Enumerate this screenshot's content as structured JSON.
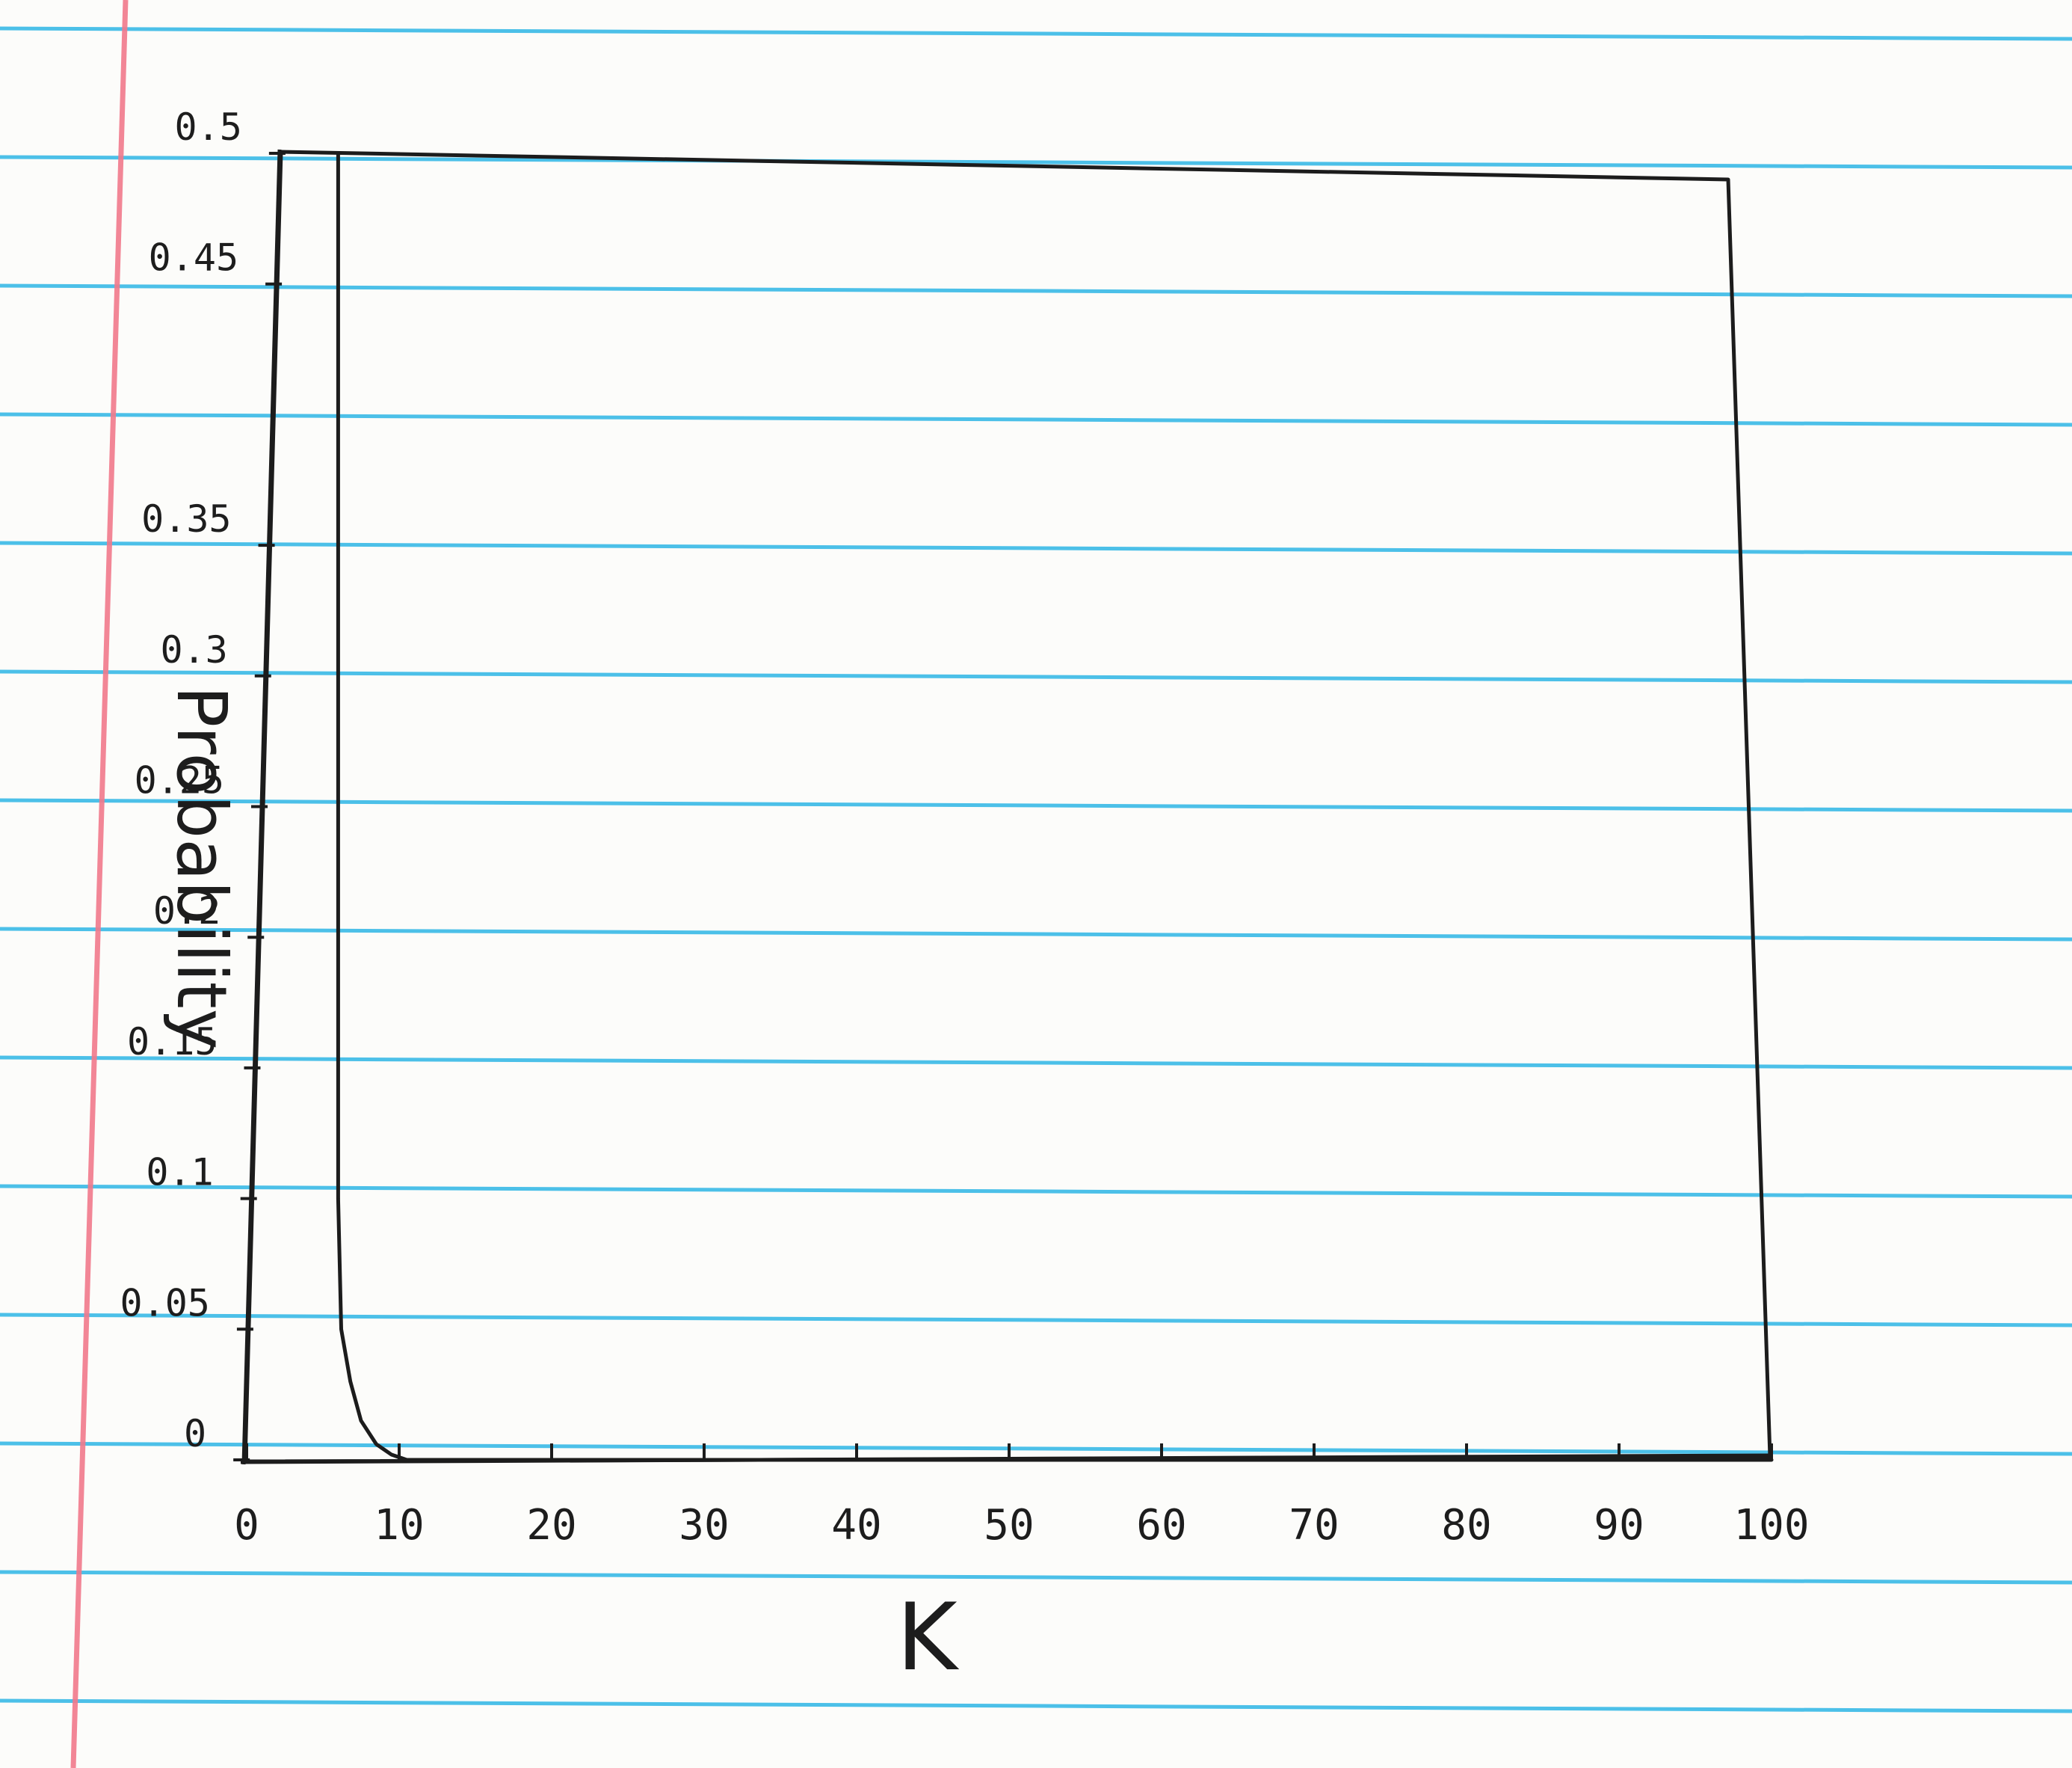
{
  "chart_data": {
    "type": "line",
    "title": "",
    "xlabel": "K",
    "ylabel": "Probability",
    "xlim": [
      0,
      100
    ],
    "ylim": [
      0,
      0.5
    ],
    "x_ticks": [
      "0",
      "10",
      "20",
      "30",
      "40",
      "50",
      "60",
      "70",
      "80",
      "90",
      "100"
    ],
    "y_ticks": [
      "0",
      "0.05",
      "0.1",
      "0.15",
      "0.2",
      "0.25",
      "0.3",
      "0.35",
      "0.45",
      "0.5"
    ],
    "series": [
      {
        "x": [
          6,
          6,
          6,
          6,
          6,
          6.2,
          6.8,
          7.5,
          8.5,
          9.5,
          10.5,
          100
        ],
        "y": [
          0.5,
          0.4,
          0.3,
          0.2,
          0.1,
          0.05,
          0.03,
          0.015,
          0.006,
          0.002,
          0,
          0
        ]
      }
    ],
    "grid": false,
    "legend": "none"
  },
  "colors": {
    "paper": "#fcfcfa",
    "rule_lines": "#2eb6e6",
    "margin_line": "#f27a8c",
    "ink": "#1c1c1c"
  }
}
